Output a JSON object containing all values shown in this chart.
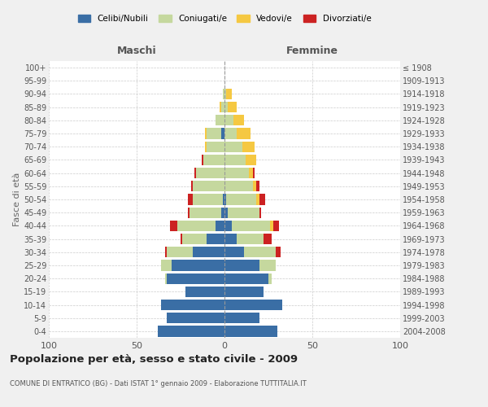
{
  "age_groups": [
    "0-4",
    "5-9",
    "10-14",
    "15-19",
    "20-24",
    "25-29",
    "30-34",
    "35-39",
    "40-44",
    "45-49",
    "50-54",
    "55-59",
    "60-64",
    "65-69",
    "70-74",
    "75-79",
    "80-84",
    "85-89",
    "90-94",
    "95-99",
    "100+"
  ],
  "birth_years": [
    "2004-2008",
    "1999-2003",
    "1994-1998",
    "1989-1993",
    "1984-1988",
    "1979-1983",
    "1974-1978",
    "1969-1973",
    "1964-1968",
    "1959-1963",
    "1954-1958",
    "1949-1953",
    "1944-1948",
    "1939-1943",
    "1934-1938",
    "1929-1933",
    "1924-1928",
    "1919-1923",
    "1914-1918",
    "1909-1913",
    "≤ 1908"
  ],
  "maschi": {
    "celibi": [
      38,
      33,
      36,
      22,
      33,
      30,
      18,
      10,
      5,
      2,
      1,
      0,
      0,
      0,
      0,
      2,
      0,
      0,
      0,
      0,
      0
    ],
    "coniugati": [
      0,
      0,
      0,
      0,
      1,
      6,
      15,
      14,
      22,
      18,
      17,
      18,
      16,
      12,
      10,
      8,
      5,
      2,
      1,
      0,
      0
    ],
    "vedovi": [
      0,
      0,
      0,
      0,
      0,
      0,
      0,
      0,
      0,
      0,
      0,
      0,
      0,
      0,
      1,
      1,
      0,
      1,
      0,
      0,
      0
    ],
    "divorziati": [
      0,
      0,
      0,
      0,
      0,
      0,
      1,
      1,
      4,
      1,
      3,
      1,
      1,
      1,
      0,
      0,
      0,
      0,
      0,
      0,
      0
    ]
  },
  "femmine": {
    "nubili": [
      30,
      20,
      33,
      22,
      25,
      20,
      11,
      7,
      4,
      2,
      1,
      0,
      0,
      0,
      0,
      0,
      0,
      0,
      0,
      0,
      0
    ],
    "coniugate": [
      0,
      0,
      0,
      0,
      2,
      9,
      18,
      15,
      22,
      18,
      17,
      16,
      14,
      12,
      10,
      7,
      5,
      2,
      1,
      0,
      0
    ],
    "vedove": [
      0,
      0,
      0,
      0,
      0,
      0,
      0,
      0,
      2,
      0,
      2,
      2,
      2,
      6,
      7,
      8,
      6,
      5,
      3,
      0,
      0
    ],
    "divorziate": [
      0,
      0,
      0,
      0,
      0,
      0,
      3,
      5,
      3,
      1,
      3,
      2,
      1,
      0,
      0,
      0,
      0,
      0,
      0,
      0,
      0
    ]
  },
  "colors": {
    "celibi": "#3a6ea5",
    "coniugati": "#c5d89e",
    "vedovi": "#f5c842",
    "divorziati": "#cc2222"
  },
  "xlim": 100,
  "title": "Popolazione per età, sesso e stato civile - 2009",
  "subtitle": "COMUNE DI ENTRATICO (BG) - Dati ISTAT 1° gennaio 2009 - Elaborazione TUTTITALIA.IT",
  "ylabel_left": "Fasce di età",
  "xlabel_left": "Maschi",
  "xlabel_right": "Femmine",
  "bg_color": "#f0f0f0",
  "plot_bg_color": "#ffffff"
}
